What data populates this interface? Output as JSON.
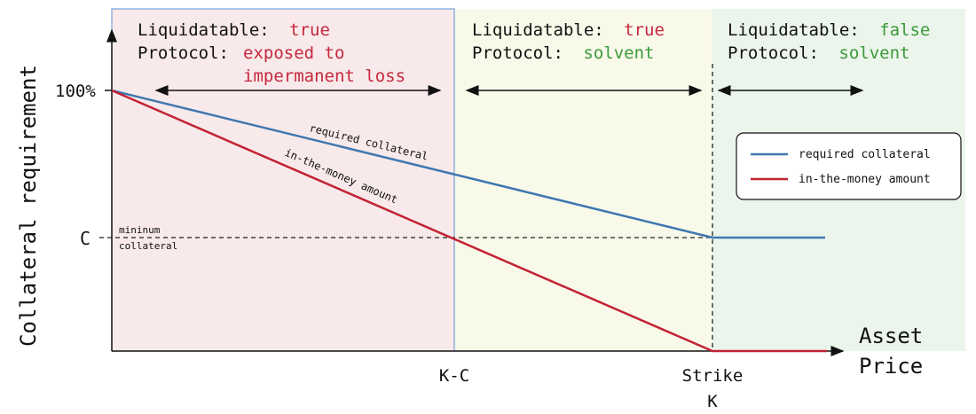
{
  "colors": {
    "zone1_fill": "#f8e9ea",
    "zone1_border": "#5b8fd6",
    "zone2_fill": "#f9f9ea",
    "zone3_fill": "#ecf5ec",
    "red": "#c5283d",
    "green": "#3a9a3a",
    "blue_line": "#3f78b0",
    "red_line": "#c22334",
    "text": "#111111"
  },
  "zones": [
    {
      "liq_label": "Liquidatable:",
      "liq_value": "true",
      "protocol_label": "Protocol:",
      "protocol_value_line1": "exposed to",
      "protocol_value_line2": "impermanent loss"
    },
    {
      "liq_label": "Liquidatable:",
      "liq_value": "true",
      "protocol_label": "Protocol:",
      "protocol_value_line1": "solvent"
    },
    {
      "liq_label": "Liquidatable:",
      "liq_value": "false",
      "protocol_label": "Protocol:",
      "protocol_value_line1": "solvent"
    }
  ],
  "axes": {
    "y_label": "Collateral requirement",
    "x_label_line1": "Asset",
    "x_label_line2": "Price",
    "y_tick_top": "100%",
    "y_tick_c": "C",
    "x_tick_kc": "K-C",
    "x_tick_strike_line1": "Strike",
    "x_tick_strike_line2": "K"
  },
  "annotations": {
    "min_collateral_line1": "mininum",
    "min_collateral_line2": "collateral",
    "required_collateral": "required collateral",
    "itm_amount": "in-the-money amount"
  },
  "legend": {
    "items": [
      {
        "label": "required collateral",
        "color": "#3f78b0"
      },
      {
        "label": "in-the-money amount",
        "color": "#c22334"
      }
    ]
  }
}
